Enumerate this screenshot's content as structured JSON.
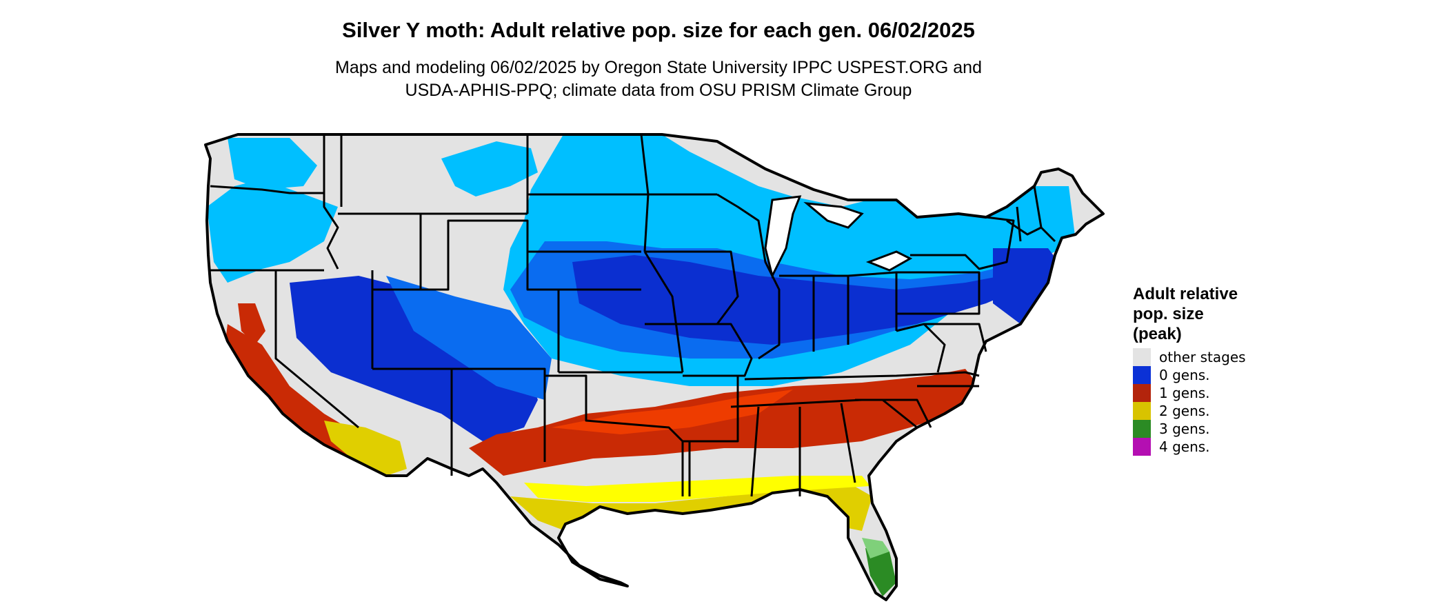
{
  "title": "Silver Y moth: Adult relative pop. size for each gen. 06/02/2025",
  "subtitle_line1": "Maps and modeling 06/02/2025 by Oregon State University IPPC USPEST.ORG and",
  "subtitle_line2": "USDA-APHIS-PPQ; climate data from OSU PRISM Climate Group",
  "legend": {
    "title_lines": [
      "Adult relative",
      "pop. size",
      "(peak)"
    ],
    "items": [
      {
        "label": "other stages",
        "color": "#e3e3e3"
      },
      {
        "label": "0 gens.",
        "color": "#0b31d6"
      },
      {
        "label": "1 gens.",
        "color": "#b3240c"
      },
      {
        "label": "2 gens.",
        "color": "#d8c300"
      },
      {
        "label": "3 gens.",
        "color": "#2b8b24"
      },
      {
        "label": "4 gens.",
        "color": "#b40fb2"
      }
    ]
  },
  "map_colors": {
    "background": "#e3e3e3",
    "light_blue": "#00bfff",
    "mid_blue": "#0a6cf0",
    "dark_blue": "#0b2fd0",
    "red": "#c92a05",
    "orange_red": "#ee3c00",
    "yellow": "#e0cf00",
    "bright_yellow": "#ffff00",
    "green": "#2b8b24",
    "light_green": "#7fd07a",
    "magenta": "#b40fb2",
    "border": "#000000"
  }
}
